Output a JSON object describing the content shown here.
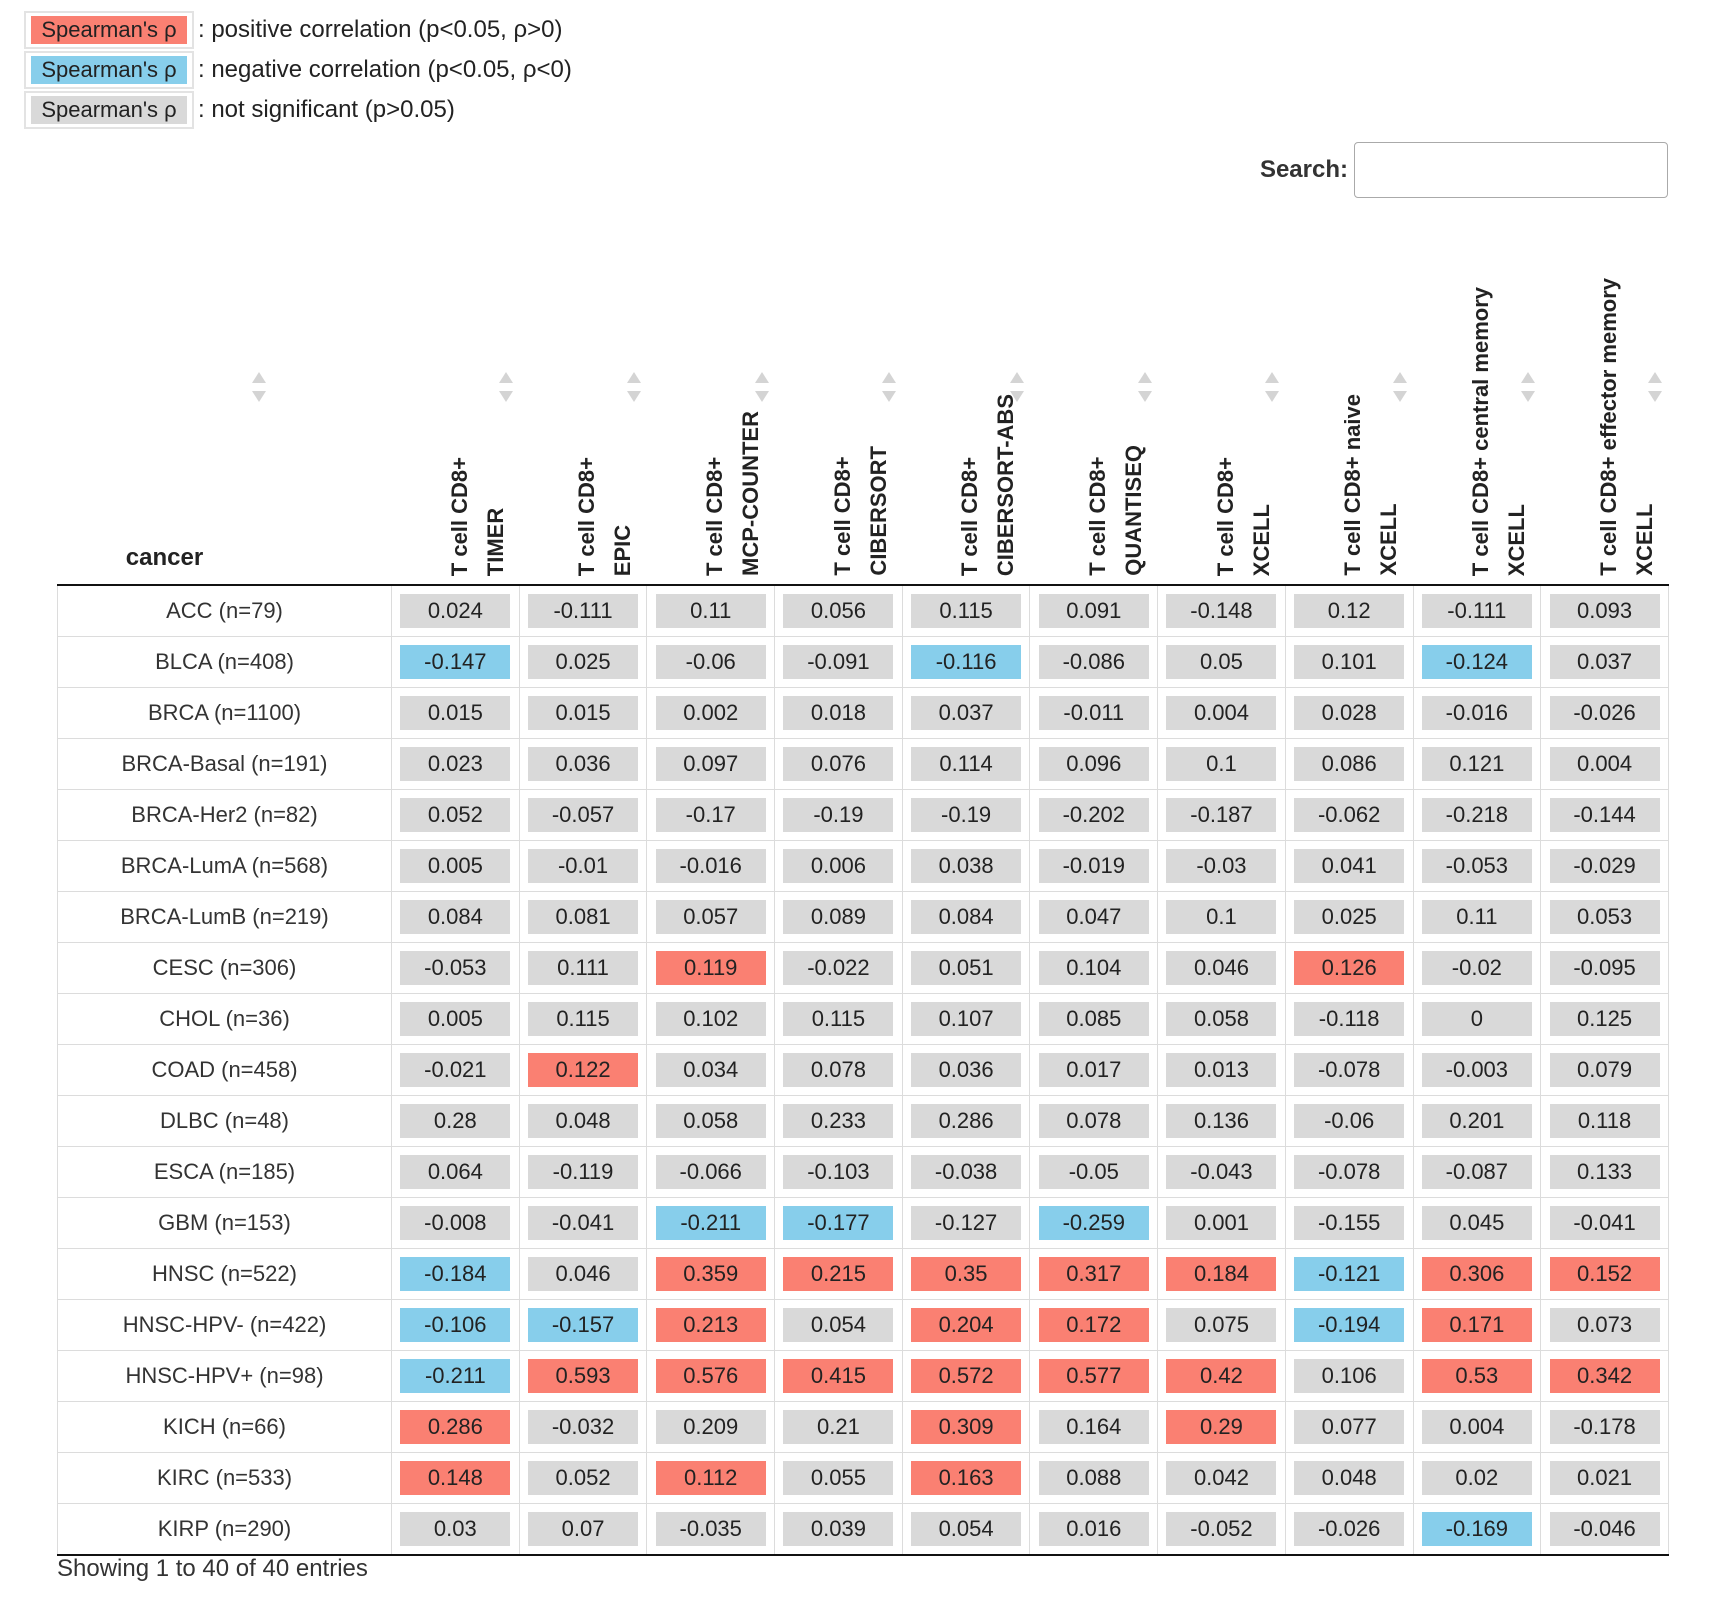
{
  "legend": [
    {
      "chip": "Spearman's ρ",
      "text": ": positive correlation (p<0.05, ρ>0)",
      "color": "#fa8072"
    },
    {
      "chip": "Spearman's ρ",
      "text": ": negative correlation (p<0.05, ρ<0)",
      "color": "#87ceeb"
    },
    {
      "chip": "Spearman's ρ",
      "text": ": not significant (p>0.05)",
      "color": "#d9d9d9"
    }
  ],
  "search": {
    "label": "Search:",
    "value": "",
    "placeholder": ""
  },
  "columns": [
    {
      "line1": "T cell CD8+",
      "line2": "TIMER"
    },
    {
      "line1": "T cell CD8+",
      "line2": "EPIC"
    },
    {
      "line1": "T cell CD8+",
      "line2": "MCP-COUNTER"
    },
    {
      "line1": "T cell CD8+",
      "line2": "CIBERSORT"
    },
    {
      "line1": "T cell CD8+",
      "line2": "CIBERSORT-ABS"
    },
    {
      "line1": "T cell CD8+",
      "line2": "QUANTISEQ"
    },
    {
      "line1": "T cell CD8+",
      "line2": "XCELL"
    },
    {
      "line1": "T cell CD8+ naive",
      "line2": "XCELL"
    },
    {
      "line1": "T cell CD8+ central memory",
      "line2": "XCELL"
    },
    {
      "line1": "T cell CD8+ effector memory",
      "line2": "XCELL"
    }
  ],
  "cancer_header": "cancer",
  "rows": [
    {
      "cancer": "ACC (n=79)",
      "cells": [
        [
          "0.024",
          "ns"
        ],
        [
          "-0.111",
          "ns"
        ],
        [
          "0.11",
          "ns"
        ],
        [
          "0.056",
          "ns"
        ],
        [
          "0.115",
          "ns"
        ],
        [
          "0.091",
          "ns"
        ],
        [
          "-0.148",
          "ns"
        ],
        [
          "0.12",
          "ns"
        ],
        [
          "-0.111",
          "ns"
        ],
        [
          "0.093",
          "ns"
        ]
      ]
    },
    {
      "cancer": "BLCA (n=408)",
      "cells": [
        [
          "-0.147",
          "neg"
        ],
        [
          "0.025",
          "ns"
        ],
        [
          "-0.06",
          "ns"
        ],
        [
          "-0.091",
          "ns"
        ],
        [
          "-0.116",
          "neg"
        ],
        [
          "-0.086",
          "ns"
        ],
        [
          "0.05",
          "ns"
        ],
        [
          "0.101",
          "ns"
        ],
        [
          "-0.124",
          "neg"
        ],
        [
          "0.037",
          "ns"
        ]
      ]
    },
    {
      "cancer": "BRCA (n=1100)",
      "cells": [
        [
          "0.015",
          "ns"
        ],
        [
          "0.015",
          "ns"
        ],
        [
          "0.002",
          "ns"
        ],
        [
          "0.018",
          "ns"
        ],
        [
          "0.037",
          "ns"
        ],
        [
          "-0.011",
          "ns"
        ],
        [
          "0.004",
          "ns"
        ],
        [
          "0.028",
          "ns"
        ],
        [
          "-0.016",
          "ns"
        ],
        [
          "-0.026",
          "ns"
        ]
      ]
    },
    {
      "cancer": "BRCA-Basal (n=191)",
      "cells": [
        [
          "0.023",
          "ns"
        ],
        [
          "0.036",
          "ns"
        ],
        [
          "0.097",
          "ns"
        ],
        [
          "0.076",
          "ns"
        ],
        [
          "0.114",
          "ns"
        ],
        [
          "0.096",
          "ns"
        ],
        [
          "0.1",
          "ns"
        ],
        [
          "0.086",
          "ns"
        ],
        [
          "0.121",
          "ns"
        ],
        [
          "0.004",
          "ns"
        ]
      ]
    },
    {
      "cancer": "BRCA-Her2 (n=82)",
      "cells": [
        [
          "0.052",
          "ns"
        ],
        [
          "-0.057",
          "ns"
        ],
        [
          "-0.17",
          "ns"
        ],
        [
          "-0.19",
          "ns"
        ],
        [
          "-0.19",
          "ns"
        ],
        [
          "-0.202",
          "ns"
        ],
        [
          "-0.187",
          "ns"
        ],
        [
          "-0.062",
          "ns"
        ],
        [
          "-0.218",
          "ns"
        ],
        [
          "-0.144",
          "ns"
        ]
      ]
    },
    {
      "cancer": "BRCA-LumA (n=568)",
      "cells": [
        [
          "0.005",
          "ns"
        ],
        [
          "-0.01",
          "ns"
        ],
        [
          "-0.016",
          "ns"
        ],
        [
          "0.006",
          "ns"
        ],
        [
          "0.038",
          "ns"
        ],
        [
          "-0.019",
          "ns"
        ],
        [
          "-0.03",
          "ns"
        ],
        [
          "0.041",
          "ns"
        ],
        [
          "-0.053",
          "ns"
        ],
        [
          "-0.029",
          "ns"
        ]
      ]
    },
    {
      "cancer": "BRCA-LumB (n=219)",
      "cells": [
        [
          "0.084",
          "ns"
        ],
        [
          "0.081",
          "ns"
        ],
        [
          "0.057",
          "ns"
        ],
        [
          "0.089",
          "ns"
        ],
        [
          "0.084",
          "ns"
        ],
        [
          "0.047",
          "ns"
        ],
        [
          "0.1",
          "ns"
        ],
        [
          "0.025",
          "ns"
        ],
        [
          "0.11",
          "ns"
        ],
        [
          "0.053",
          "ns"
        ]
      ]
    },
    {
      "cancer": "CESC (n=306)",
      "cells": [
        [
          "-0.053",
          "ns"
        ],
        [
          "0.111",
          "ns"
        ],
        [
          "0.119",
          "pos"
        ],
        [
          "-0.022",
          "ns"
        ],
        [
          "0.051",
          "ns"
        ],
        [
          "0.104",
          "ns"
        ],
        [
          "0.046",
          "ns"
        ],
        [
          "0.126",
          "pos"
        ],
        [
          "-0.02",
          "ns"
        ],
        [
          "-0.095",
          "ns"
        ]
      ]
    },
    {
      "cancer": "CHOL (n=36)",
      "cells": [
        [
          "0.005",
          "ns"
        ],
        [
          "0.115",
          "ns"
        ],
        [
          "0.102",
          "ns"
        ],
        [
          "0.115",
          "ns"
        ],
        [
          "0.107",
          "ns"
        ],
        [
          "0.085",
          "ns"
        ],
        [
          "0.058",
          "ns"
        ],
        [
          "-0.118",
          "ns"
        ],
        [
          "0",
          "ns"
        ],
        [
          "0.125",
          "ns"
        ]
      ]
    },
    {
      "cancer": "COAD (n=458)",
      "cells": [
        [
          "-0.021",
          "ns"
        ],
        [
          "0.122",
          "pos"
        ],
        [
          "0.034",
          "ns"
        ],
        [
          "0.078",
          "ns"
        ],
        [
          "0.036",
          "ns"
        ],
        [
          "0.017",
          "ns"
        ],
        [
          "0.013",
          "ns"
        ],
        [
          "-0.078",
          "ns"
        ],
        [
          "-0.003",
          "ns"
        ],
        [
          "0.079",
          "ns"
        ]
      ]
    },
    {
      "cancer": "DLBC (n=48)",
      "cells": [
        [
          "0.28",
          "ns"
        ],
        [
          "0.048",
          "ns"
        ],
        [
          "0.058",
          "ns"
        ],
        [
          "0.233",
          "ns"
        ],
        [
          "0.286",
          "ns"
        ],
        [
          "0.078",
          "ns"
        ],
        [
          "0.136",
          "ns"
        ],
        [
          "-0.06",
          "ns"
        ],
        [
          "0.201",
          "ns"
        ],
        [
          "0.118",
          "ns"
        ]
      ]
    },
    {
      "cancer": "ESCA (n=185)",
      "cells": [
        [
          "0.064",
          "ns"
        ],
        [
          "-0.119",
          "ns"
        ],
        [
          "-0.066",
          "ns"
        ],
        [
          "-0.103",
          "ns"
        ],
        [
          "-0.038",
          "ns"
        ],
        [
          "-0.05",
          "ns"
        ],
        [
          "-0.043",
          "ns"
        ],
        [
          "-0.078",
          "ns"
        ],
        [
          "-0.087",
          "ns"
        ],
        [
          "0.133",
          "ns"
        ]
      ]
    },
    {
      "cancer": "GBM (n=153)",
      "cells": [
        [
          "-0.008",
          "ns"
        ],
        [
          "-0.041",
          "ns"
        ],
        [
          "-0.211",
          "neg"
        ],
        [
          "-0.177",
          "neg"
        ],
        [
          "-0.127",
          "ns"
        ],
        [
          "-0.259",
          "neg"
        ],
        [
          "0.001",
          "ns"
        ],
        [
          "-0.155",
          "ns"
        ],
        [
          "0.045",
          "ns"
        ],
        [
          "-0.041",
          "ns"
        ]
      ]
    },
    {
      "cancer": "HNSC (n=522)",
      "cells": [
        [
          "-0.184",
          "neg"
        ],
        [
          "0.046",
          "ns"
        ],
        [
          "0.359",
          "pos"
        ],
        [
          "0.215",
          "pos"
        ],
        [
          "0.35",
          "pos"
        ],
        [
          "0.317",
          "pos"
        ],
        [
          "0.184",
          "pos"
        ],
        [
          "-0.121",
          "neg"
        ],
        [
          "0.306",
          "pos"
        ],
        [
          "0.152",
          "pos"
        ]
      ]
    },
    {
      "cancer": "HNSC-HPV- (n=422)",
      "cells": [
        [
          "-0.106",
          "neg"
        ],
        [
          "-0.157",
          "neg"
        ],
        [
          "0.213",
          "pos"
        ],
        [
          "0.054",
          "ns"
        ],
        [
          "0.204",
          "pos"
        ],
        [
          "0.172",
          "pos"
        ],
        [
          "0.075",
          "ns"
        ],
        [
          "-0.194",
          "neg"
        ],
        [
          "0.171",
          "pos"
        ],
        [
          "0.073",
          "ns"
        ]
      ]
    },
    {
      "cancer": "HNSC-HPV+ (n=98)",
      "cells": [
        [
          "-0.211",
          "neg"
        ],
        [
          "0.593",
          "pos"
        ],
        [
          "0.576",
          "pos"
        ],
        [
          "0.415",
          "pos"
        ],
        [
          "0.572",
          "pos"
        ],
        [
          "0.577",
          "pos"
        ],
        [
          "0.42",
          "pos"
        ],
        [
          "0.106",
          "ns"
        ],
        [
          "0.53",
          "pos"
        ],
        [
          "0.342",
          "pos"
        ]
      ]
    },
    {
      "cancer": "KICH (n=66)",
      "cells": [
        [
          "0.286",
          "pos"
        ],
        [
          "-0.032",
          "ns"
        ],
        [
          "0.209",
          "ns"
        ],
        [
          "0.21",
          "ns"
        ],
        [
          "0.309",
          "pos"
        ],
        [
          "0.164",
          "ns"
        ],
        [
          "0.29",
          "pos"
        ],
        [
          "0.077",
          "ns"
        ],
        [
          "0.004",
          "ns"
        ],
        [
          "-0.178",
          "ns"
        ]
      ]
    },
    {
      "cancer": "KIRC (n=533)",
      "cells": [
        [
          "0.148",
          "pos"
        ],
        [
          "0.052",
          "ns"
        ],
        [
          "0.112",
          "pos"
        ],
        [
          "0.055",
          "ns"
        ],
        [
          "0.163",
          "pos"
        ],
        [
          "0.088",
          "ns"
        ],
        [
          "0.042",
          "ns"
        ],
        [
          "0.048",
          "ns"
        ],
        [
          "0.02",
          "ns"
        ],
        [
          "0.021",
          "ns"
        ]
      ]
    },
    {
      "cancer": "KIRP (n=290)",
      "cells": [
        [
          "0.03",
          "ns"
        ],
        [
          "0.07",
          "ns"
        ],
        [
          "-0.035",
          "ns"
        ],
        [
          "0.039",
          "ns"
        ],
        [
          "0.054",
          "ns"
        ],
        [
          "0.016",
          "ns"
        ],
        [
          "-0.052",
          "ns"
        ],
        [
          "-0.026",
          "ns"
        ],
        [
          "-0.169",
          "neg"
        ],
        [
          "-0.046",
          "ns"
        ]
      ]
    }
  ],
  "info": "Showing 1 to 40 of 40 entries"
}
